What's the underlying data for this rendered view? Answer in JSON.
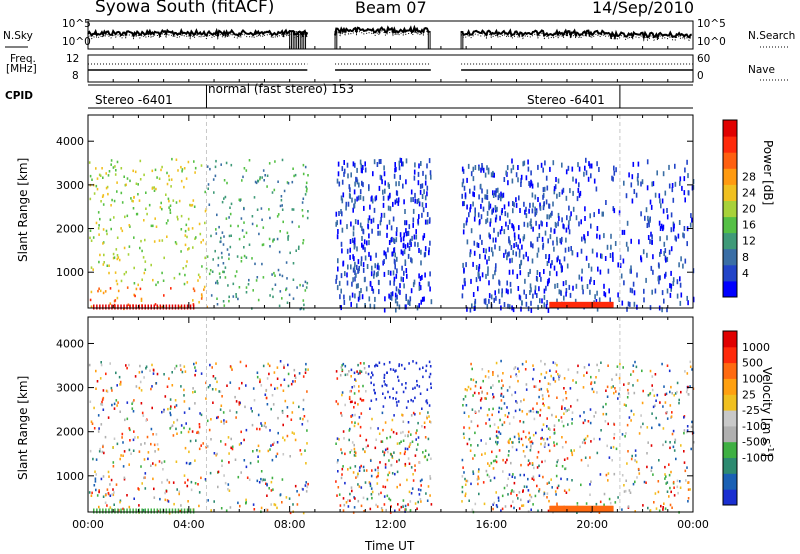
{
  "header": {
    "station": "Syowa South (fitACF)",
    "beam": "Beam 07",
    "date": "14/Sep/2010"
  },
  "strip_labels": {
    "nsky": "N.Sky",
    "nsky_ticks": [
      "10^5",
      "10^0"
    ],
    "nsearch": "N.Search",
    "nsearch_ticks": [
      "10^5",
      "10^0"
    ],
    "freq_line1": "Freq.",
    "freq_line2": "[MHz]",
    "freq_ticks": [
      "12",
      "8"
    ],
    "nave": "Nave",
    "nave_ticks": [
      "60",
      "0"
    ],
    "cpid": "CPID"
  },
  "modes": [
    {
      "label": "Stereo -6401",
      "start_h": 0.0,
      "end_h": 4.7
    },
    {
      "label": "normal (fast stereo) 153",
      "start_h": 4.7,
      "end_h": 21.1
    },
    {
      "label": "Stereo -6401",
      "start_h": 21.1,
      "end_h": 24.0
    }
  ],
  "chart_data": [
    {
      "type": "heatmap",
      "title": "Power",
      "ylabel": "Slant Range [km]",
      "ylim": [
        180,
        4600
      ],
      "yticks": [
        "1000",
        "2000",
        "3000",
        "4000"
      ],
      "xlim": [
        "00:00",
        "24:00"
      ],
      "colorbar_label": "Power [dB]",
      "colorbar_ticks": [
        "4",
        "8",
        "12",
        "16",
        "20",
        "24",
        "28"
      ],
      "colors": [
        "#0000ff",
        "#2244c8",
        "#3a6ea5",
        "#3f9a78",
        "#55c045",
        "#a8d23a",
        "#f0c020",
        "#ff9a10",
        "#ff6010",
        "#ff2a0a",
        "#e00000"
      ],
      "data_gaps": [
        [
          8.7,
          9.8
        ],
        [
          13.6,
          14.8
        ]
      ]
    },
    {
      "type": "heatmap",
      "title": "Velocity",
      "ylabel": "Slant Range [km]",
      "ylim": [
        180,
        4600
      ],
      "yticks": [
        "1000",
        "2000",
        "3000",
        "4000"
      ],
      "xlabel": "Time UT",
      "xticks": [
        "00:00",
        "04:00",
        "08:00",
        "12:00",
        "16:00",
        "20:00",
        "00:00"
      ],
      "colorbar_label": "Velocity [m s^-1]",
      "colorbar_ticks": [
        "1000",
        "500",
        "100",
        "25",
        "-25",
        "-100",
        "-500",
        "-1000"
      ],
      "colors": [
        "#1a2fd0",
        "#1a60b4",
        "#2d8a70",
        "#3fb043",
        "#b0b0b0",
        "#c8c8c8",
        "#f0c020",
        "#ffa010",
        "#ff6a10",
        "#ff2a0a",
        "#e00000"
      ],
      "data_gaps": [
        [
          8.7,
          9.8
        ],
        [
          13.6,
          14.8
        ]
      ]
    }
  ],
  "axis": {
    "xlabel": "Time UT"
  }
}
